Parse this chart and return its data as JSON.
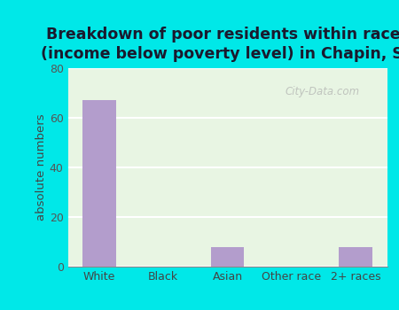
{
  "categories": [
    "White",
    "Black",
    "Asian",
    "Other race",
    "2+ races"
  ],
  "values": [
    67,
    0,
    8,
    0,
    8
  ],
  "bar_color": "#b39dcc",
  "title": "Breakdown of poor residents within races\n(income below poverty level) in Chapin, SC",
  "ylabel": "absolute numbers",
  "ylim": [
    0,
    80
  ],
  "yticks": [
    0,
    20,
    40,
    60,
    80
  ],
  "bg_outer": "#00e8e8",
  "bg_inner": "#e8f5e3",
  "title_fontsize": 12.5,
  "label_fontsize": 9.5,
  "tick_fontsize": 9,
  "bar_width": 0.52,
  "grid_color": "#ffffff",
  "watermark": "City-Data.com",
  "title_color": "#1a1a2e"
}
